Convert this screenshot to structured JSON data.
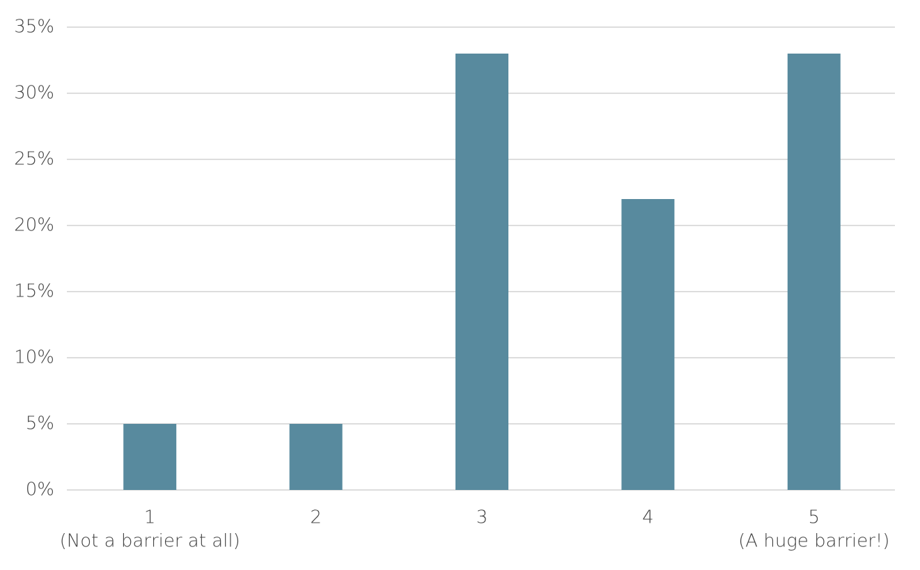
{
  "chart_data": {
    "type": "bar",
    "categories": [
      "1",
      "2",
      "3",
      "4",
      "5"
    ],
    "category_notes": [
      "(Not a barrier at all)",
      null,
      null,
      null,
      "(A huge barrier!)"
    ],
    "values": [
      5,
      5,
      33,
      22,
      33
    ],
    "color": "#588a9e",
    "ylim": [
      0,
      35
    ],
    "yticks": [
      {
        "value": 0,
        "label": "0%"
      },
      {
        "value": 5,
        "label": "5%"
      },
      {
        "value": 10,
        "label": "10%"
      },
      {
        "value": 15,
        "label": "15%"
      },
      {
        "value": 20,
        "label": "20%"
      },
      {
        "value": 25,
        "label": "25%"
      },
      {
        "value": 30,
        "label": "30%"
      },
      {
        "value": 35,
        "label": "35%"
      }
    ],
    "grid": true
  }
}
